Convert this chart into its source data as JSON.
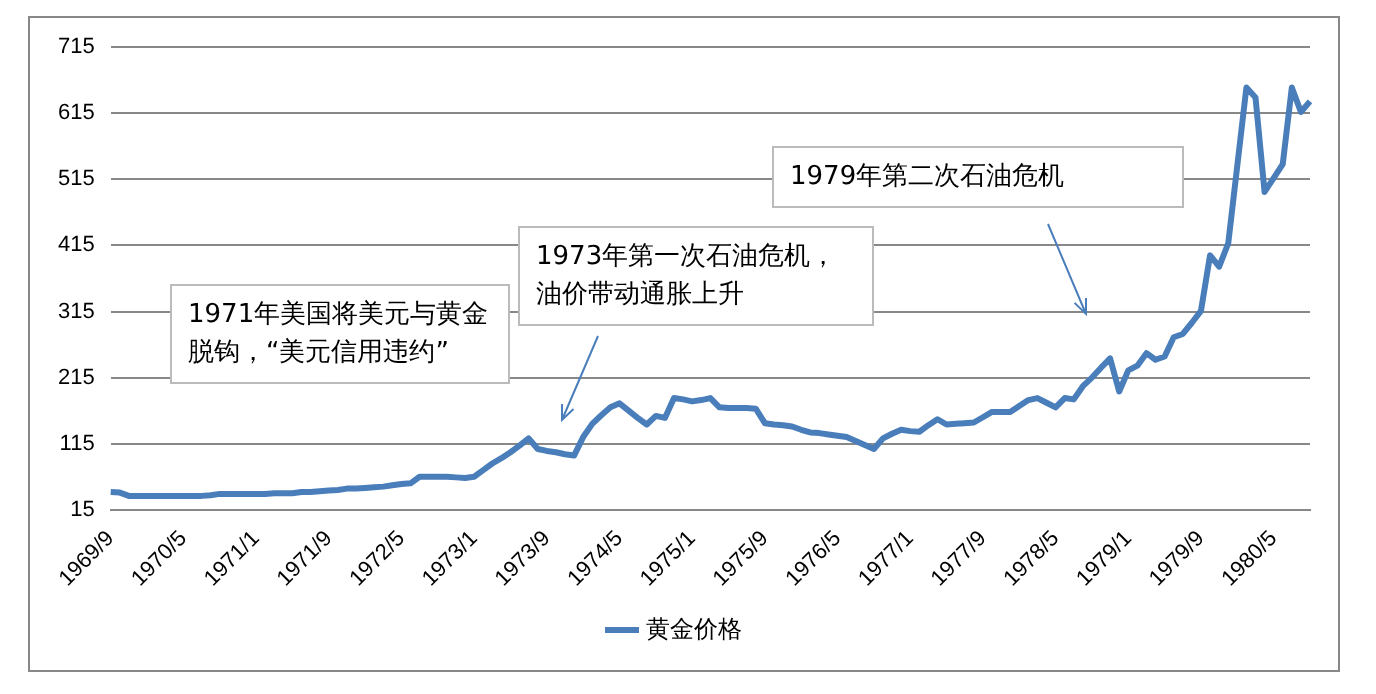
{
  "chart_data": {
    "type": "line",
    "categories": [
      "1969/9",
      null,
      null,
      null,
      null,
      null,
      null,
      null,
      "1970/5",
      null,
      null,
      null,
      null,
      null,
      null,
      null,
      "1971/1",
      null,
      null,
      null,
      null,
      null,
      null,
      null,
      "1971/9",
      null,
      null,
      null,
      null,
      null,
      null,
      null,
      "1972/5",
      null,
      null,
      null,
      null,
      null,
      null,
      null,
      "1973/1",
      null,
      null,
      null,
      null,
      null,
      null,
      null,
      "1973/9",
      null,
      null,
      null,
      null,
      null,
      null,
      null,
      "1974/5",
      null,
      null,
      null,
      null,
      null,
      null,
      null,
      "1975/1",
      null,
      null,
      null,
      null,
      null,
      null,
      null,
      "1975/9",
      null,
      null,
      null,
      null,
      null,
      null,
      null,
      "1976/5",
      null,
      null,
      null,
      null,
      null,
      null,
      null,
      "1977/1",
      null,
      null,
      null,
      null,
      null,
      null,
      null,
      "1977/9",
      null,
      null,
      null,
      null,
      null,
      null,
      null,
      "1978/5",
      null,
      null,
      null,
      null,
      null,
      null,
      null,
      "1979/1",
      null,
      null,
      null,
      null,
      null,
      null,
      null,
      "1979/9",
      null,
      null,
      null,
      null,
      null,
      null,
      null,
      "1980/5",
      null,
      null,
      null,
      null
    ],
    "series": [
      {
        "name": "黄金价格",
        "color": "#4a7ebb",
        "values": [
          42,
          41,
          36,
          36,
          36,
          36,
          36,
          36,
          36,
          36,
          36,
          37,
          39,
          39,
          39,
          39,
          39,
          39,
          40,
          40,
          40,
          42,
          42,
          43,
          44,
          45,
          47,
          47,
          48,
          49,
          50,
          52,
          54,
          55,
          65,
          65,
          65,
          65,
          64,
          63,
          65,
          75,
          85,
          93,
          102,
          112,
          123,
          107,
          104,
          102,
          99,
          97,
          125,
          145,
          158,
          170,
          176,
          165,
          154,
          144,
          157,
          154,
          184,
          182,
          179,
          181,
          184,
          170,
          169,
          169,
          169,
          168,
          146,
          144,
          143,
          141,
          136,
          132,
          131,
          129,
          127,
          125,
          119,
          113,
          107,
          123,
          130,
          136,
          134,
          133,
          143,
          152,
          144,
          145,
          146,
          147,
          155,
          163,
          163,
          163,
          172,
          181,
          184,
          177,
          170,
          184,
          182,
          202,
          215,
          230,
          244,
          194,
          226,
          233,
          252,
          242,
          247,
          276,
          281,
          298,
          316,
          400,
          383,
          418,
          536,
          654,
          639,
          496,
          517,
          538,
          654,
          617,
          633
        ]
      }
    ],
    "ylim": [
      15,
      715
    ],
    "yticks": [
      15,
      115,
      215,
      315,
      415,
      515,
      615,
      715
    ],
    "grid": "y",
    "legend": "bottom",
    "annotations": [
      "1971年美国将美元与黄金脱钩，“美元信用违约”",
      "1973年第一次石油危机，油价带动通胀上升",
      "1979年第二次石油危机"
    ]
  }
}
